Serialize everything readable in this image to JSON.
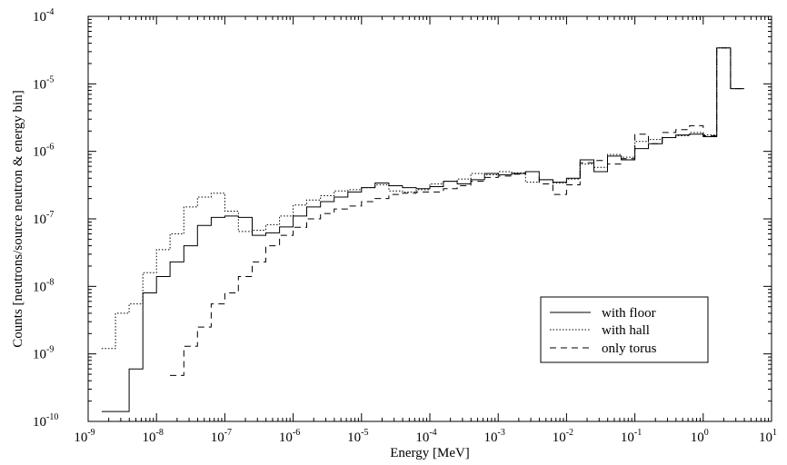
{
  "chart_data": {
    "type": "line",
    "title": "",
    "xlabel": "Energy [MeV]",
    "ylabel": "Counts [neutrons/source neutron & energy bin]",
    "xscale": "log",
    "yscale": "log",
    "xlim": [
      1e-09,
      10
    ],
    "ylim": [
      1e-10,
      0.0001
    ],
    "x_ticks": [
      {
        "base": "10",
        "exp": "-9",
        "value": 1e-09
      },
      {
        "base": "10",
        "exp": "-8",
        "value": 1e-08
      },
      {
        "base": "10",
        "exp": "-7",
        "value": 1e-07
      },
      {
        "base": "10",
        "exp": "-6",
        "value": 1e-06
      },
      {
        "base": "10",
        "exp": "-5",
        "value": 1e-05
      },
      {
        "base": "10",
        "exp": "-4",
        "value": 0.0001
      },
      {
        "base": "10",
        "exp": "-3",
        "value": 0.001
      },
      {
        "base": "10",
        "exp": "-2",
        "value": 0.01
      },
      {
        "base": "10",
        "exp": "-1",
        "value": 0.1
      },
      {
        "base": "10",
        "exp": "0",
        "value": 1
      },
      {
        "base": "10",
        "exp": "1",
        "value": 10
      }
    ],
    "y_ticks": [
      {
        "base": "10",
        "exp": "-10",
        "value": 1e-10
      },
      {
        "base": "10",
        "exp": "-9",
        "value": 1e-09
      },
      {
        "base": "10",
        "exp": "-8",
        "value": 1e-08
      },
      {
        "base": "10",
        "exp": "-7",
        "value": 1e-07
      },
      {
        "base": "10",
        "exp": "-6",
        "value": 1e-06
      },
      {
        "base": "10",
        "exp": "-5",
        "value": 1e-05
      },
      {
        "base": "10",
        "exp": "-4",
        "value": 0.0001
      }
    ],
    "grid": false,
    "legend_position": "bottom-right",
    "bin_edges": [
      1.58e-09,
      2.51e-09,
      3.98e-09,
      6.31e-09,
      1e-08,
      1.58e-08,
      2.51e-08,
      3.98e-08,
      6.31e-08,
      1e-07,
      1.58e-07,
      2.51e-07,
      3.98e-07,
      6.31e-07,
      1e-06,
      1.58e-06,
      2.51e-06,
      3.98e-06,
      6.31e-06,
      1e-05,
      1.58e-05,
      2.51e-05,
      3.98e-05,
      6.31e-05,
      0.0001,
      0.000158,
      0.000251,
      0.000398,
      0.000631,
      0.001,
      0.00158,
      0.00251,
      0.00398,
      0.00631,
      0.01,
      0.0158,
      0.0251,
      0.0398,
      0.0631,
      0.1,
      0.158,
      0.251,
      0.398,
      0.631,
      1.0,
      1.58,
      2.51,
      3.98
    ],
    "series": [
      {
        "name": "with floor",
        "style": "solid",
        "values": [
          1.4e-10,
          1.4e-10,
          6e-10,
          8e-09,
          1.4e-08,
          2.3e-08,
          4e-08,
          8e-08,
          1.05e-07,
          1.1e-07,
          1.05e-07,
          5.7e-08,
          6.2e-08,
          7.6e-08,
          1.1e-07,
          1.5e-07,
          1.8e-07,
          2.1e-07,
          2.5e-07,
          2.9e-07,
          3.4e-07,
          3.1e-07,
          2.9e-07,
          2.8e-07,
          3e-07,
          3.6e-07,
          3.3e-07,
          3.8e-07,
          4.7e-07,
          4.5e-07,
          4.7e-07,
          5e-07,
          3.8e-07,
          3.5e-07,
          4e-07,
          7.5e-07,
          5e-07,
          8.5e-07,
          7.5e-07,
          1.1e-06,
          1.3e-06,
          1.6e-06,
          1.75e-06,
          1.8e-06,
          1.65e-06,
          3.4e-05,
          8.5e-06
        ]
      },
      {
        "name": "with hall",
        "style": "dotted",
        "values": [
          1.2e-09,
          4e-09,
          5.5e-09,
          1.6e-08,
          3.5e-08,
          6e-08,
          1.5e-07,
          2.1e-07,
          2.4e-07,
          1.3e-07,
          6.5e-08,
          6.8e-08,
          8.2e-08,
          1.1e-07,
          1.6e-07,
          1.9e-07,
          2.2e-07,
          2.6e-07,
          2.7e-07,
          2.9e-07,
          3.2e-07,
          2.6e-07,
          2.5e-07,
          2.7e-07,
          3.3e-07,
          3.6e-07,
          3.9e-07,
          4.7e-07,
          4.5e-07,
          5e-07,
          4.8e-07,
          3.5e-07,
          3.8e-07,
          3.4e-07,
          3.9e-07,
          6.5e-07,
          5.8e-07,
          9e-07,
          8.2e-07,
          1.4e-06,
          1.5e-06,
          1.6e-06,
          1.7e-06,
          1.9e-06,
          1.75e-06,
          3.4e-05,
          8.5e-06
        ]
      },
      {
        "name": "only torus",
        "style": "dashed",
        "values": [
          null,
          null,
          null,
          null,
          null,
          4.8e-10,
          1.3e-09,
          2.5e-09,
          5.5e-09,
          8e-09,
          1.4e-08,
          2.3e-08,
          4e-08,
          5.7e-08,
          7.5e-08,
          1e-07,
          1.2e-07,
          1.4e-07,
          1.55e-07,
          1.8e-07,
          2e-07,
          2.3e-07,
          2.4e-07,
          2.5e-07,
          2.5e-07,
          2.8e-07,
          3.1e-07,
          3.6e-07,
          4.1e-07,
          4.3e-07,
          4.6e-07,
          5e-07,
          3.3e-07,
          2.3e-07,
          3.2e-07,
          6.8e-07,
          7.3e-07,
          6.5e-07,
          7.8e-07,
          1.8e-06,
          1.3e-06,
          1.9e-06,
          2.1e-06,
          2.4e-06,
          1.7e-06,
          3.4e-05,
          8.5e-06
        ]
      }
    ]
  }
}
